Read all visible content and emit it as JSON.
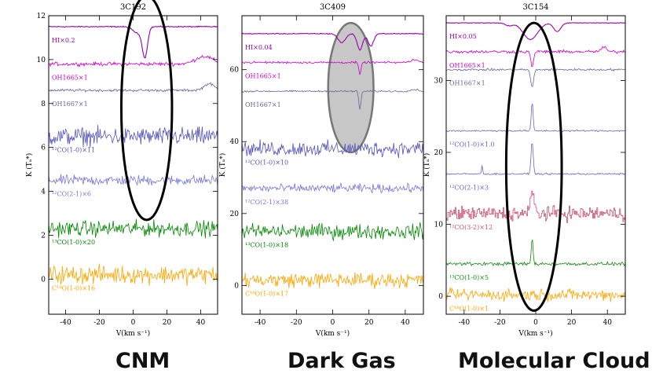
{
  "panels": [
    {
      "title": "3C192",
      "caption": "CNM",
      "xlabel": "V(km s⁻¹)",
      "ylabel": "K (Tₐ*)",
      "xlim": [
        -50,
        50
      ],
      "ylim": [
        -1.6,
        12
      ],
      "xticks": [
        -40,
        -20,
        0,
        20,
        40
      ],
      "yticks": [
        0,
        2,
        4,
        6,
        8,
        10,
        12
      ],
      "highlight": {
        "type": "ellipse-outline",
        "center_v": 8,
        "center_k": 7.8,
        "half_width_v": 15,
        "half_height_k": 5.1
      },
      "traces": [
        {
          "label": "HI×0.2",
          "color": "#9900aa",
          "baseline": 11.5,
          "style": "abs",
          "noise": 0.02,
          "features": [
            {
              "center": 7,
              "width": 1.5,
              "amp": -1.3
            },
            {
              "center": 3,
              "width": 3,
              "amp": -0.3
            }
          ]
        },
        {
          "label": "OH1665×1",
          "color": "#cc00cc",
          "baseline": 9.8,
          "style": "noise",
          "noise": 0.07,
          "features": [
            {
              "center": 42,
              "width": 5,
              "amp": 0.35
            }
          ]
        },
        {
          "label": "OH1667×1",
          "color": "#666699",
          "baseline": 8.6,
          "style": "noise",
          "noise": 0.05,
          "features": [
            {
              "center": 45,
              "width": 3,
              "amp": 0.3
            }
          ]
        },
        {
          "label": "¹²CO(1-0)×11",
          "color": "#5555bb",
          "baseline": 6.5,
          "style": "noise",
          "noise": 0.35
        },
        {
          "label": "¹²CO(2-1)×6",
          "color": "#7777dd",
          "baseline": 4.5,
          "style": "noise",
          "noise": 0.2
        },
        {
          "label": "¹³CO(1-0)×20",
          "color": "#008800",
          "baseline": 2.3,
          "style": "noise",
          "noise": 0.3
        },
        {
          "label": "C¹⁸O(1-0)×16",
          "color": "#ffa500",
          "baseline": 0.2,
          "style": "noise",
          "noise": 0.35
        }
      ]
    },
    {
      "title": "3C409",
      "caption": "Dark Gas",
      "xlabel": "V(km s⁻¹)",
      "ylabel": "K (Tₐ*)",
      "xlim": [
        -50,
        50
      ],
      "ylim": [
        -8,
        75
      ],
      "xticks": [
        -40,
        -20,
        0,
        20,
        40
      ],
      "yticks": [
        0,
        20,
        40,
        60
      ],
      "highlight": {
        "type": "ellipse-filled",
        "center_v": 10,
        "center_k": 55,
        "half_width_v": 12.5,
        "half_height_k": 18
      },
      "traces": [
        {
          "label": "HI×0.04",
          "color": "#9900aa",
          "baseline": 70,
          "style": "abs",
          "noise": 0.1,
          "features": [
            {
              "center": 5,
              "width": 2,
              "amp": -2.5
            },
            {
              "center": 15,
              "width": 1.5,
              "amp": -4.5
            },
            {
              "center": 21,
              "width": 1.5,
              "amp": -3.5
            }
          ]
        },
        {
          "label": "OH1665×1",
          "color": "#cc00cc",
          "baseline": 62,
          "style": "noise",
          "noise": 0.25,
          "features": [
            {
              "center": 15,
              "width": 0.6,
              "amp": -3.5
            },
            {
              "center": 45,
              "width": 2,
              "amp": 0.8
            }
          ]
        },
        {
          "label": "OH1667×1",
          "color": "#666699",
          "baseline": 54,
          "style": "noise",
          "noise": 0.2,
          "features": [
            {
              "center": 15,
              "width": 0.6,
              "amp": -5
            },
            {
              "center": 45,
              "width": 2,
              "amp": 0.5
            }
          ]
        },
        {
          "label": "¹²CO(1-0)×10",
          "color": "#5555bb",
          "baseline": 38,
          "style": "noise",
          "noise": 1.8
        },
        {
          "label": "¹²CO(2-1)×38",
          "color": "#7777dd",
          "baseline": 27,
          "style": "noise",
          "noise": 1.0
        },
        {
          "label": "¹³CO(1-0)×18",
          "color": "#008800",
          "baseline": 15,
          "style": "noise",
          "noise": 1.8
        },
        {
          "label": "C¹⁸O(1-0)×17",
          "color": "#ffa500",
          "baseline": 1.5,
          "style": "noise",
          "noise": 1.8
        }
      ]
    },
    {
      "title": "3C154",
      "caption": "Molecular Cloud",
      "xlabel": "V(km s⁻¹)",
      "ylabel": "K (Tₐ*)",
      "xlim": [
        -50,
        50
      ],
      "ylim": [
        -2.5,
        39
      ],
      "xticks": [
        -40,
        -20,
        0,
        20,
        40
      ],
      "yticks": [
        0,
        10,
        20,
        30
      ],
      "highlight": {
        "type": "ellipse-outline",
        "center_v": -1,
        "center_k": 18,
        "half_width_v": 15.5,
        "half_height_k": 20
      },
      "traces": [
        {
          "label": "HI×0.05",
          "color": "#9900aa",
          "baseline": 38,
          "style": "abs",
          "noise": 0.03,
          "features": [
            {
              "center": -3,
              "width": 4,
              "amp": -2.3
            },
            {
              "center": -15,
              "width": 2,
              "amp": -0.4
            },
            {
              "center": 12,
              "width": 2,
              "amp": -1.2
            }
          ]
        },
        {
          "label": "OH1665×1",
          "color": "#cc00cc",
          "baseline": 34,
          "style": "noise",
          "noise": 0.18,
          "features": [
            {
              "center": -2,
              "width": 0.8,
              "amp": -2
            },
            {
              "center": 38,
              "width": 1.5,
              "amp": 0.6
            }
          ]
        },
        {
          "label": "OH1667×1",
          "color": "#666699",
          "baseline": 31.5,
          "style": "noise",
          "noise": 0.12,
          "features": [
            {
              "center": -2,
              "width": 0.8,
              "amp": -2.5
            }
          ]
        },
        {
          "label": "¹²CO(1-0)×1.0",
          "color": "#6666cc",
          "baseline": 23,
          "style": "noise",
          "noise": 0.1,
          "features": [
            {
              "center": -2,
              "width": 0.5,
              "amp": 4
            }
          ]
        },
        {
          "label": "¹²CO(2-1)×3",
          "color": "#6666cc",
          "baseline": 17,
          "style": "noise",
          "noise": 0.1,
          "features": [
            {
              "center": -2,
              "width": 0.6,
              "amp": 4.5
            },
            {
              "center": -30,
              "width": 0.3,
              "amp": 1.2
            }
          ]
        },
        {
          "label": "¹²CO(3-2)×12",
          "color": "#cc5577",
          "baseline": 11.5,
          "style": "step",
          "noise": 0.8,
          "features": [
            {
              "center": -2,
              "width": 1,
              "amp": 3
            }
          ]
        },
        {
          "label": "¹³CO(1-0)×5",
          "color": "#118811",
          "baseline": 4.5,
          "style": "noise",
          "noise": 0.2,
          "features": [
            {
              "center": -2,
              "width": 0.5,
              "amp": 3.5
            }
          ]
        },
        {
          "label": "C¹⁸O(1-0)×1",
          "color": "#ffa500",
          "baseline": 0.2,
          "style": "noise",
          "noise": 0.7
        }
      ]
    }
  ],
  "chart_data": [
    {
      "type": "line",
      "title": "3C192",
      "xlabel": "V(km s⁻¹)",
      "ylabel": "K (Tₐ*)",
      "xlim": [
        -50,
        50
      ],
      "ylim": [
        -1.6,
        12
      ],
      "series": [
        {
          "name": "HI×0.2",
          "baseline": 11.5,
          "feature": "absorption near +7 km/s"
        },
        {
          "name": "OH1665×1",
          "baseline": 9.8
        },
        {
          "name": "OH1667×1",
          "baseline": 8.6
        },
        {
          "name": "¹²CO(1-0)×11",
          "baseline": 6.5
        },
        {
          "name": "¹²CO(2-1)×6",
          "baseline": 4.5
        },
        {
          "name": "¹³CO(1-0)×20",
          "baseline": 2.3
        },
        {
          "name": "C¹⁸O(1-0)×16",
          "baseline": 0.2
        }
      ]
    },
    {
      "type": "line",
      "title": "3C409",
      "xlabel": "V(km s⁻¹)",
      "ylabel": "K (Tₐ*)",
      "xlim": [
        -50,
        50
      ],
      "ylim": [
        -8,
        75
      ],
      "series": [
        {
          "name": "HI×0.04",
          "baseline": 70,
          "feature": "absorption +5 to +21 km/s"
        },
        {
          "name": "OH1665×1",
          "baseline": 62,
          "feature": "absorption near +15 km/s"
        },
        {
          "name": "OH1667×1",
          "baseline": 54,
          "feature": "absorption near +15 km/s"
        },
        {
          "name": "¹²CO(1-0)×10",
          "baseline": 38
        },
        {
          "name": "¹²CO(2-1)×38",
          "baseline": 27
        },
        {
          "name": "¹³CO(1-0)×18",
          "baseline": 15
        },
        {
          "name": "C¹⁸O(1-0)×17",
          "baseline": 1.5
        }
      ]
    },
    {
      "type": "line",
      "title": "3C154",
      "xlabel": "V(km s⁻¹)",
      "ylabel": "K (Tₐ*)",
      "xlim": [
        -50,
        50
      ],
      "ylim": [
        -2.5,
        39
      ],
      "series": [
        {
          "name": "HI×0.05",
          "baseline": 38,
          "feature": "absorption near -3 km/s"
        },
        {
          "name": "OH1665×1",
          "baseline": 34
        },
        {
          "name": "OH1667×1",
          "baseline": 31.5
        },
        {
          "name": "¹²CO(1-0)×1.0",
          "baseline": 23,
          "feature": "emission near -2 km/s"
        },
        {
          "name": "¹²CO(2-1)×3",
          "baseline": 17,
          "feature": "emission near -2 km/s"
        },
        {
          "name": "¹²CO(3-2)×12",
          "baseline": 11.5
        },
        {
          "name": "¹³CO(1-0)×5",
          "baseline": 4.5,
          "feature": "emission near -2 km/s"
        },
        {
          "name": "C¹⁸O(1-0)×1",
          "baseline": 0.2
        }
      ]
    }
  ]
}
